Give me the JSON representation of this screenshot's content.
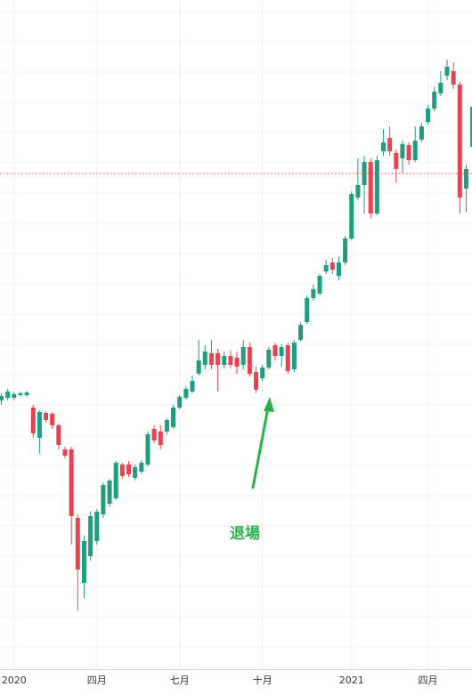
{
  "chart_data": {
    "type": "candlestick",
    "categories": [
      null,
      null,
      "2020",
      null,
      null,
      null,
      null,
      null,
      null,
      null,
      null,
      null,
      null,
      null,
      null,
      "四月",
      null,
      null,
      null,
      null,
      null,
      null,
      null,
      null,
      null,
      null,
      null,
      null,
      "七月",
      null,
      null,
      null,
      null,
      null,
      null,
      null,
      null,
      null,
      null,
      null,
      null,
      "十月",
      null,
      null,
      null,
      null,
      null,
      null,
      null,
      null,
      null,
      null,
      null,
      null,
      null,
      "2021",
      null,
      null,
      null,
      null,
      null,
      null,
      null,
      null,
      null,
      null,
      null,
      "四月",
      null,
      null,
      null,
      null,
      null,
      null,
      null
    ],
    "open": [
      310,
      313,
      313,
      316,
      316,
      302,
      268,
      296,
      295,
      282,
      255,
      255,
      178,
      105,
      135,
      152,
      182,
      194,
      200,
      238,
      238,
      223,
      230,
      238,
      278,
      275,
      275,
      280,
      302,
      313,
      320,
      340,
      350,
      363,
      363,
      350,
      360,
      358,
      350,
      370,
      342,
      335,
      347,
      372,
      360,
      372,
      345,
      378,
      398,
      425,
      430,
      455,
      465,
      450,
      465,
      492,
      538,
      552,
      578,
      520,
      590,
      605,
      588,
      582,
      597,
      580,
      603,
      623,
      638,
      655,
      675,
      680,
      665,
      548,
      595
    ],
    "high": [
      318,
      323,
      320,
      320,
      321,
      305,
      299,
      298,
      297,
      284,
      258,
      258,
      182,
      158,
      185,
      188,
      218,
      222,
      242,
      240,
      242,
      238,
      243,
      275,
      282,
      282,
      290,
      305,
      316,
      326,
      338,
      378,
      372,
      378,
      368,
      365,
      366,
      365,
      378,
      375,
      348,
      350,
      370,
      375,
      373,
      375,
      378,
      398,
      428,
      440,
      452,
      468,
      470,
      472,
      495,
      545,
      582,
      585,
      582,
      585,
      615,
      618,
      592,
      602,
      600,
      618,
      622,
      642,
      662,
      680,
      693,
      690,
      668,
      575,
      645
    ],
    "low": [
      305,
      310,
      310,
      314,
      314,
      268,
      250,
      285,
      278,
      255,
      245,
      148,
      74,
      88,
      130,
      148,
      178,
      190,
      198,
      222,
      224,
      220,
      228,
      236,
      262,
      255,
      272,
      278,
      300,
      311,
      318,
      338,
      345,
      345,
      320,
      346,
      346,
      340,
      345,
      337,
      318,
      332,
      345,
      355,
      348,
      340,
      342,
      376,
      396,
      422,
      428,
      452,
      452,
      445,
      462,
      490,
      535,
      520,
      515,
      518,
      585,
      585,
      555,
      565,
      575,
      578,
      600,
      620,
      635,
      652,
      670,
      660,
      520,
      522,
      580
    ],
    "close": [
      315,
      320,
      317,
      318,
      319,
      273,
      297,
      288,
      282,
      260,
      248,
      180,
      120,
      152,
      180,
      185,
      215,
      220,
      240,
      225,
      227,
      235,
      240,
      272,
      265,
      260,
      288,
      302,
      314,
      323,
      332,
      355,
      365,
      350,
      350,
      360,
      350,
      348,
      370,
      340,
      322,
      347,
      367,
      360,
      370,
      343,
      375,
      395,
      425,
      435,
      450,
      462,
      457,
      465,
      492,
      542,
      552,
      578,
      520,
      580,
      600,
      590,
      570,
      598,
      580,
      602,
      618,
      638,
      657,
      667,
      685,
      665,
      538,
      570,
      640
    ],
    "up_color": "#1f9e7f",
    "down_color": "#e8424f",
    "ylim": [
      8,
      760
    ],
    "reference_line": {
      "value": 565,
      "color": "#d9534f"
    },
    "annotation": {
      "text": "退場",
      "color": "#2db04b"
    },
    "grid": true
  }
}
